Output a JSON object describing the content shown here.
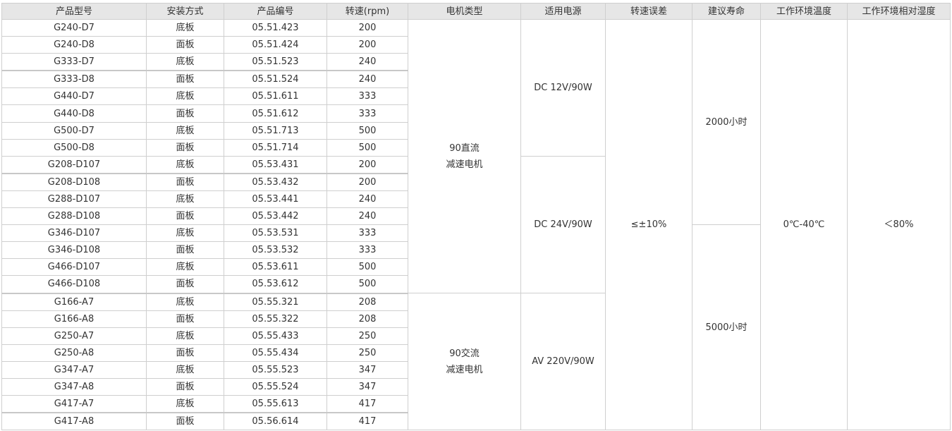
{
  "headers": [
    "产品型号",
    "安装方式",
    "产品编号",
    "转速(rpm)",
    "电机类型",
    "适用电源",
    "转速误差",
    "建议寿命",
    "工作环境温度",
    "工作环境相对湿度"
  ],
  "rows": [
    [
      "G240-D7",
      "底板",
      "05.51.423",
      "200"
    ],
    [
      "G240-D8",
      "面板",
      "05.51.424",
      "200"
    ],
    [
      "G333-D7",
      "底板",
      "05.51.523",
      "240"
    ],
    [
      "G333-D8",
      "面板",
      "05.51.524",
      "240"
    ],
    [
      "G440-D7",
      "底板",
      "05.51.611",
      "333"
    ],
    [
      "G440-D8",
      "面板",
      "05.51.612",
      "333"
    ],
    [
      "G500-D7",
      "底板",
      "05.51.713",
      "500"
    ],
    [
      "G500-D8",
      "面板",
      "05.51.714",
      "500"
    ],
    [
      "G208-D107",
      "底板",
      "05.53.431",
      "200"
    ],
    [
      "G208-D108",
      "面板",
      "05.53.432",
      "200"
    ],
    [
      "G288-D107",
      "底板",
      "05.53.441",
      "240"
    ],
    [
      "G288-D108",
      "面板",
      "05.53.442",
      "240"
    ],
    [
      "G346-D107",
      "底板",
      "05.53.531",
      "333"
    ],
    [
      "G346-D108",
      "面板",
      "05.53.532",
      "333"
    ],
    [
      "G466-D107",
      "底板",
      "05.53.611",
      "500"
    ],
    [
      "G466-D108",
      "面板",
      "05.53.612",
      "500"
    ],
    [
      "G166-A7",
      "底板",
      "05.55.321",
      "208"
    ],
    [
      "G166-A8",
      "面板",
      "05.55.322",
      "208"
    ],
    [
      "G250-A7",
      "底板",
      "05.55.433",
      "250"
    ],
    [
      "G250-A8",
      "面板",
      "05.55.434",
      "250"
    ],
    [
      "G347-A7",
      "底板",
      "05.55.523",
      "347"
    ],
    [
      "G347-A8",
      "面板",
      "05.55.524",
      "347"
    ],
    [
      "G417-A7",
      "底板",
      "05.55.613",
      "417"
    ],
    [
      "G417-A8",
      "面板",
      "05.56.614",
      "417"
    ]
  ],
  "merged": {
    "motor_type": [
      {
        "text": "90直流\n减速电机",
        "rows": 16
      },
      {
        "text": "90交流\n减速电机",
        "rows": 8
      }
    ],
    "power": [
      {
        "text": "DC 12V/90W",
        "rows": 8
      },
      {
        "text": "DC 24V/90W",
        "rows": 8
      },
      {
        "text": "AV 220V/90W",
        "rows": 8
      }
    ],
    "speed_error": [
      {
        "text": "≤±10%",
        "rows": 24
      }
    ],
    "life": [
      {
        "text": "2000小时",
        "rows": 12
      },
      {
        "text": "5000小时",
        "rows": 12
      }
    ],
    "temperature": [
      {
        "text": "0℃-40℃",
        "rows": 24
      }
    ],
    "humidity": [
      {
        "text": "＜80%",
        "rows": 24
      }
    ]
  }
}
